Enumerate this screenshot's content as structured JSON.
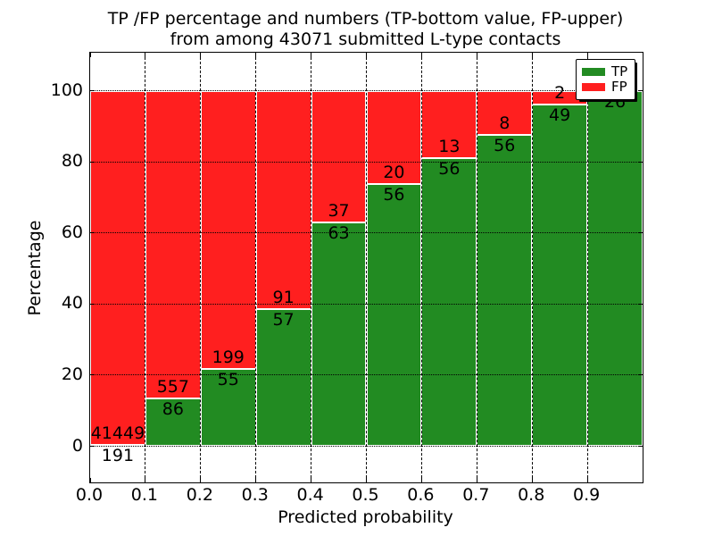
{
  "title": {
    "line1": "TP /FP percentage and numbers (TP-bottom value, FP-upper)",
    "line2": "from among 43071 submitted L-type contacts"
  },
  "chart_data": {
    "type": "bar",
    "subtype": "stacked-percentage-bars",
    "title": "TP /FP percentage and numbers (TP-bottom value, FP-upper) from among 43071 submitted L-type contacts",
    "xlabel": "Predicted probability",
    "ylabel": "Percentage",
    "total_contacts": 43071,
    "x_tick_labels": [
      "0.0",
      "0.1",
      "0.2",
      "0.3",
      "0.4",
      "0.5",
      "0.6",
      "0.7",
      "0.8",
      "0.9"
    ],
    "y_ticks": [
      0,
      20,
      40,
      60,
      80,
      100
    ],
    "xlim": [
      0.0,
      1.0
    ],
    "ylim": [
      -10.2,
      110.7
    ],
    "grid": true,
    "legend": {
      "position": "upper right",
      "entries": [
        {
          "label": "TP",
          "color": "#228B22"
        },
        {
          "label": "FP",
          "color": "#FF1F1F"
        }
      ]
    },
    "colors": {
      "tp": "#228B22",
      "fp": "#FF1F1F",
      "bar_edge": "#FFFFFF",
      "grid": "#000000"
    },
    "bins": [
      {
        "range": "0.0-0.1",
        "tp": 191,
        "fp": 41449,
        "tp_pct": 0.46
      },
      {
        "range": "0.1-0.2",
        "tp": 86,
        "fp": 557,
        "tp_pct": 13.37
      },
      {
        "range": "0.2-0.3",
        "tp": 55,
        "fp": 199,
        "tp_pct": 21.65
      },
      {
        "range": "0.3-0.4",
        "tp": 57,
        "fp": 91,
        "tp_pct": 38.51
      },
      {
        "range": "0.4-0.5",
        "tp": 63,
        "fp": 37,
        "tp_pct": 63.0
      },
      {
        "range": "0.5-0.6",
        "tp": 56,
        "fp": 20,
        "tp_pct": 73.68
      },
      {
        "range": "0.6-0.7",
        "tp": 56,
        "fp": 13,
        "tp_pct": 81.16
      },
      {
        "range": "0.7-0.8",
        "tp": 56,
        "fp": 8,
        "tp_pct": 87.5
      },
      {
        "range": "0.8-0.9",
        "tp": 49,
        "fp": 2,
        "tp_pct": 96.08
      },
      {
        "range": "0.9-1.0",
        "tp": 26,
        "fp": null,
        "tp_pct": 100.0,
        "fp_label_hidden_by_legend": true
      }
    ]
  }
}
